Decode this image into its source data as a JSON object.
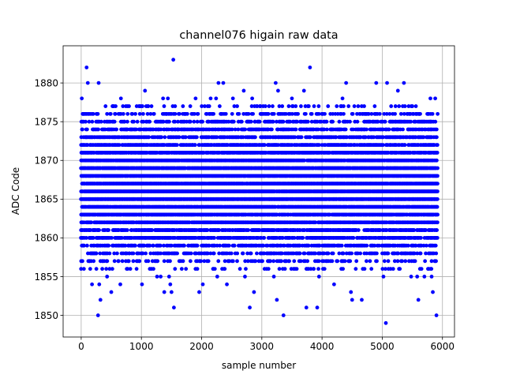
{
  "chart_data": {
    "type": "scatter",
    "title": "channel076 higain raw data",
    "xlabel": "sample number",
    "ylabel": "ADC Code",
    "xlim": [
      -300,
      6200
    ],
    "ylim": [
      1847.2,
      1884.8
    ],
    "xticks": [
      0,
      1000,
      2000,
      3000,
      4000,
      5000,
      6000
    ],
    "yticks": [
      1850,
      1855,
      1860,
      1865,
      1870,
      1875,
      1880
    ],
    "grid": true,
    "marker_color": "#0000ff",
    "sample_range": [
      0,
      5920
    ],
    "bulk_band": [
      1856,
      1877
    ],
    "series": [
      {
        "points": [
          [
            0,
            1857
          ],
          [
            10,
            1878
          ],
          [
            30,
            1876
          ],
          [
            60,
            1869
          ],
          [
            80,
            1876
          ],
          [
            90,
            1882
          ],
          [
            110,
            1880
          ],
          [
            150,
            1856
          ],
          [
            180,
            1854
          ],
          [
            200,
            1876
          ],
          [
            250,
            1858
          ],
          [
            280,
            1850
          ],
          [
            290,
            1880
          ],
          [
            300,
            1854
          ],
          [
            320,
            1852
          ],
          [
            380,
            1874
          ],
          [
            430,
            1855
          ],
          [
            500,
            1853
          ],
          [
            520,
            1877
          ],
          [
            560,
            1876
          ],
          [
            650,
            1854
          ],
          [
            660,
            1878
          ],
          [
            700,
            1876
          ],
          [
            760,
            1874
          ],
          [
            840,
            1876
          ],
          [
            920,
            1856
          ],
          [
            960,
            1877
          ],
          [
            1010,
            1854
          ],
          [
            1060,
            1879
          ],
          [
            1080,
            1877
          ],
          [
            1150,
            1874
          ],
          [
            1200,
            1856
          ],
          [
            1260,
            1855
          ],
          [
            1320,
            1855
          ],
          [
            1360,
            1878
          ],
          [
            1380,
            1853
          ],
          [
            1420,
            1876
          ],
          [
            1440,
            1878
          ],
          [
            1460,
            1855
          ],
          [
            1480,
            1854
          ],
          [
            1500,
            1853
          ],
          [
            1530,
            1883
          ],
          [
            1540,
            1851
          ],
          [
            1560,
            1876
          ],
          [
            1600,
            1874
          ],
          [
            1720,
            1876
          ],
          [
            1900,
            1878
          ],
          [
            1940,
            1876
          ],
          [
            1960,
            1853
          ],
          [
            2020,
            1854
          ],
          [
            2100,
            1877
          ],
          [
            2150,
            1878
          ],
          [
            2190,
            1856
          ],
          [
            2240,
            1878
          ],
          [
            2260,
            1855
          ],
          [
            2280,
            1880
          ],
          [
            2300,
            1877
          ],
          [
            2360,
            1880
          ],
          [
            2420,
            1854
          ],
          [
            2520,
            1878
          ],
          [
            2620,
            1876
          ],
          [
            2700,
            1879
          ],
          [
            2720,
            1855
          ],
          [
            2780,
            1876
          ],
          [
            2800,
            1851
          ],
          [
            2840,
            1878
          ],
          [
            2870,
            1853
          ],
          [
            2920,
            1877
          ],
          [
            3000,
            1876
          ],
          [
            3080,
            1856
          ],
          [
            3120,
            1877
          ],
          [
            3200,
            1855
          ],
          [
            3230,
            1880
          ],
          [
            3250,
            1852
          ],
          [
            3270,
            1879
          ],
          [
            3290,
            1877
          ],
          [
            3360,
            1850
          ],
          [
            3400,
            1876
          ],
          [
            3500,
            1878
          ],
          [
            3580,
            1856
          ],
          [
            3650,
            1877
          ],
          [
            3700,
            1879
          ],
          [
            3740,
            1851
          ],
          [
            3780,
            1877
          ],
          [
            3800,
            1882
          ],
          [
            3860,
            1856
          ],
          [
            3920,
            1851
          ],
          [
            3950,
            1855
          ],
          [
            4000,
            1876
          ],
          [
            4100,
            1877
          ],
          [
            4200,
            1854
          ],
          [
            4340,
            1878
          ],
          [
            4400,
            1880
          ],
          [
            4440,
            1877
          ],
          [
            4480,
            1853
          ],
          [
            4500,
            1852
          ],
          [
            4560,
            1856
          ],
          [
            4600,
            1877
          ],
          [
            4660,
            1852
          ],
          [
            4700,
            1877
          ],
          [
            4820,
            1856
          ],
          [
            4900,
            1880
          ],
          [
            5020,
            1855
          ],
          [
            5060,
            1849
          ],
          [
            5080,
            1880
          ],
          [
            5140,
            1856
          ],
          [
            5220,
            1877
          ],
          [
            5260,
            1879
          ],
          [
            5360,
            1880
          ],
          [
            5420,
            1876
          ],
          [
            5480,
            1855
          ],
          [
            5500,
            1877
          ],
          [
            5580,
            1855
          ],
          [
            5600,
            1852
          ],
          [
            5620,
            1876
          ],
          [
            5700,
            1855
          ],
          [
            5760,
            1856
          ],
          [
            5800,
            1878
          ],
          [
            5820,
            1855
          ],
          [
            5840,
            1853
          ],
          [
            5880,
            1878
          ],
          [
            5900,
            1850
          ],
          [
            5920,
            1876
          ]
        ]
      }
    ]
  }
}
